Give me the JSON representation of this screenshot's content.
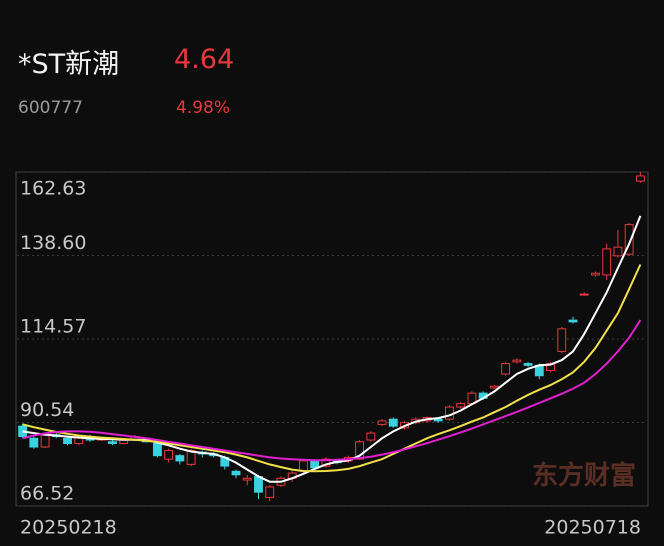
{
  "quote": {
    "name": "*ST新潮",
    "price": "4.64",
    "code": "600777",
    "change": "4.98%"
  },
  "chart_data": {
    "type": "candlestick",
    "watermark": "东方财富",
    "categories": [
      "20250218",
      null,
      null,
      null,
      null,
      null,
      null,
      null,
      null,
      null,
      null,
      null,
      null,
      null,
      null,
      null,
      null,
      null,
      null,
      null,
      null,
      null,
      null,
      null,
      null,
      null,
      null,
      null,
      null,
      null,
      null,
      null,
      null,
      null,
      null,
      null,
      null,
      null,
      null,
      null,
      null,
      null,
      null,
      null,
      null,
      null,
      null,
      null,
      null,
      null,
      null,
      null,
      null,
      null,
      null,
      "20250718"
    ],
    "open": [
      89.5,
      86.0,
      83.5,
      87.0,
      86.0,
      84.5,
      86.5,
      85.5,
      85.0,
      84.5,
      85.5,
      86.0,
      84.5,
      80.0,
      81.0,
      78.5,
      82.0,
      81.5,
      80.5,
      76.5,
      74.0,
      75.0,
      69.0,
      72.5,
      74.5,
      76.5,
      79.5,
      78.0,
      79.5,
      79.5,
      80.0,
      85.5,
      90.0,
      91.5,
      89.0,
      90.5,
      91.0,
      91.5,
      91.5,
      95.0,
      96.0,
      99.0,
      100.5,
      104.5,
      108.0,
      107.5,
      107.0,
      105.5,
      111.0,
      120.0,
      127.5,
      133.0,
      133.0,
      138.5,
      139.0,
      160.0
    ],
    "close": [
      86.5,
      83.5,
      87.0,
      86.5,
      84.5,
      86.5,
      85.5,
      86.0,
      84.5,
      85.5,
      86.5,
      85.0,
      81.0,
      82.5,
      79.5,
      82.5,
      81.5,
      81.0,
      78.0,
      75.5,
      74.5,
      70.5,
      72.0,
      74.5,
      76.0,
      79.5,
      77.5,
      80.0,
      79.0,
      80.5,
      85.0,
      87.5,
      91.0,
      89.5,
      90.5,
      91.5,
      92.0,
      91.0,
      95.0,
      96.0,
      99.0,
      97.5,
      101.0,
      107.5,
      108.5,
      107.0,
      104.0,
      107.5,
      117.5,
      119.5,
      127.5,
      133.5,
      140.5,
      141.0,
      147.5,
      161.5
    ],
    "high": [
      90.2,
      86.5,
      87.5,
      87.8,
      86.8,
      87.0,
      87.0,
      86.5,
      85.5,
      85.8,
      87.0,
      86.2,
      84.8,
      83.0,
      81.5,
      83.0,
      82.5,
      82.0,
      81.0,
      77.0,
      75.5,
      75.5,
      72.5,
      75.0,
      76.5,
      80.0,
      80.0,
      80.5,
      80.0,
      81.0,
      85.5,
      88.0,
      91.5,
      92.0,
      91.0,
      92.0,
      92.3,
      92.0,
      95.5,
      96.5,
      99.5,
      99.5,
      101.3,
      108.0,
      109.0,
      108.0,
      107.5,
      108.0,
      118.0,
      121.0,
      128.0,
      134.0,
      142.0,
      146.0,
      148.0,
      162.6
    ],
    "low": [
      86.0,
      83.0,
      83.2,
      86.0,
      84.0,
      84.0,
      85.0,
      85.2,
      84.0,
      84.2,
      85.2,
      84.8,
      80.5,
      79.0,
      78.5,
      78.0,
      80.5,
      80.5,
      77.0,
      74.5,
      72.5,
      68.5,
      68.0,
      72.0,
      73.5,
      76.0,
      77.0,
      77.5,
      78.5,
      79.0,
      79.8,
      85.0,
      89.5,
      89.0,
      88.5,
      90.0,
      90.5,
      90.5,
      91.0,
      94.5,
      95.5,
      97.0,
      100.2,
      104.0,
      107.5,
      106.5,
      103.0,
      105.0,
      110.5,
      119.0,
      127.0,
      132.5,
      131.5,
      138.0,
      138.5,
      159.5
    ],
    "up_color": "#e8383d",
    "down_color": "#3ad1e0",
    "series": [
      {
        "color": "#ffffff",
        "values": [
          88,
          87.5,
          87,
          86.8,
          86.5,
          86.2,
          86,
          85.8,
          85.7,
          85.6,
          85.6,
          85.5,
          84.8,
          84,
          83,
          82.2,
          81.8,
          81.5,
          80.5,
          79,
          77,
          75,
          73.5,
          73.5,
          74.5,
          75.8,
          77.2,
          78.5,
          79.2,
          79.6,
          81,
          83.5,
          86,
          88,
          89.5,
          90.8,
          91.5,
          91.8,
          92.6,
          94,
          95.8,
          97.5,
          99.5,
          102,
          104.5,
          106,
          107,
          107.2,
          108.5,
          111,
          116,
          122,
          128,
          135,
          142,
          150
        ]
      },
      {
        "color": "#f2e04a",
        "values": [
          90,
          89.2,
          88.5,
          87.8,
          87.3,
          86.8,
          86.5,
          86.2,
          86,
          85.8,
          85.6,
          85.3,
          85,
          84.5,
          84,
          83.5,
          83,
          82.5,
          82,
          81.3,
          80.5,
          79.5,
          78.5,
          77.7,
          77,
          76.6,
          76.5,
          76.6,
          76.8,
          77.2,
          78,
          79,
          80,
          81.5,
          83,
          84.5,
          86,
          87.2,
          88.3,
          89.5,
          90.8,
          92,
          93.5,
          95,
          96.8,
          98.5,
          100,
          101.3,
          103,
          105,
          108,
          112,
          117,
          122,
          129,
          136
        ]
      },
      {
        "color": "#e020d0",
        "values": [
          86,
          86.8,
          87.4,
          87.8,
          88,
          88,
          87.9,
          87.6,
          87.2,
          86.8,
          86.4,
          86,
          85.5,
          85,
          84.5,
          84,
          83.5,
          83,
          82.5,
          82,
          81.5,
          81,
          80.5,
          80.2,
          80,
          79.8,
          79.7,
          79.7,
          79.8,
          80,
          80.3,
          80.7,
          81.3,
          82,
          82.8,
          83.7,
          84.6,
          85.6,
          86.6,
          87.7,
          88.8,
          90,
          91.2,
          92.4,
          93.6,
          94.9,
          96.2,
          97.5,
          98.8,
          100.3,
          102,
          104.5,
          107.5,
          111,
          115,
          120
        ]
      }
    ],
    "ylim": [
      66.52,
      162.63
    ],
    "yticks": [
      66.52,
      90.54,
      114.57,
      {
        "value": 138.6,
        "label": "138.60"
      },
      162.63
    ],
    "grid": true
  }
}
